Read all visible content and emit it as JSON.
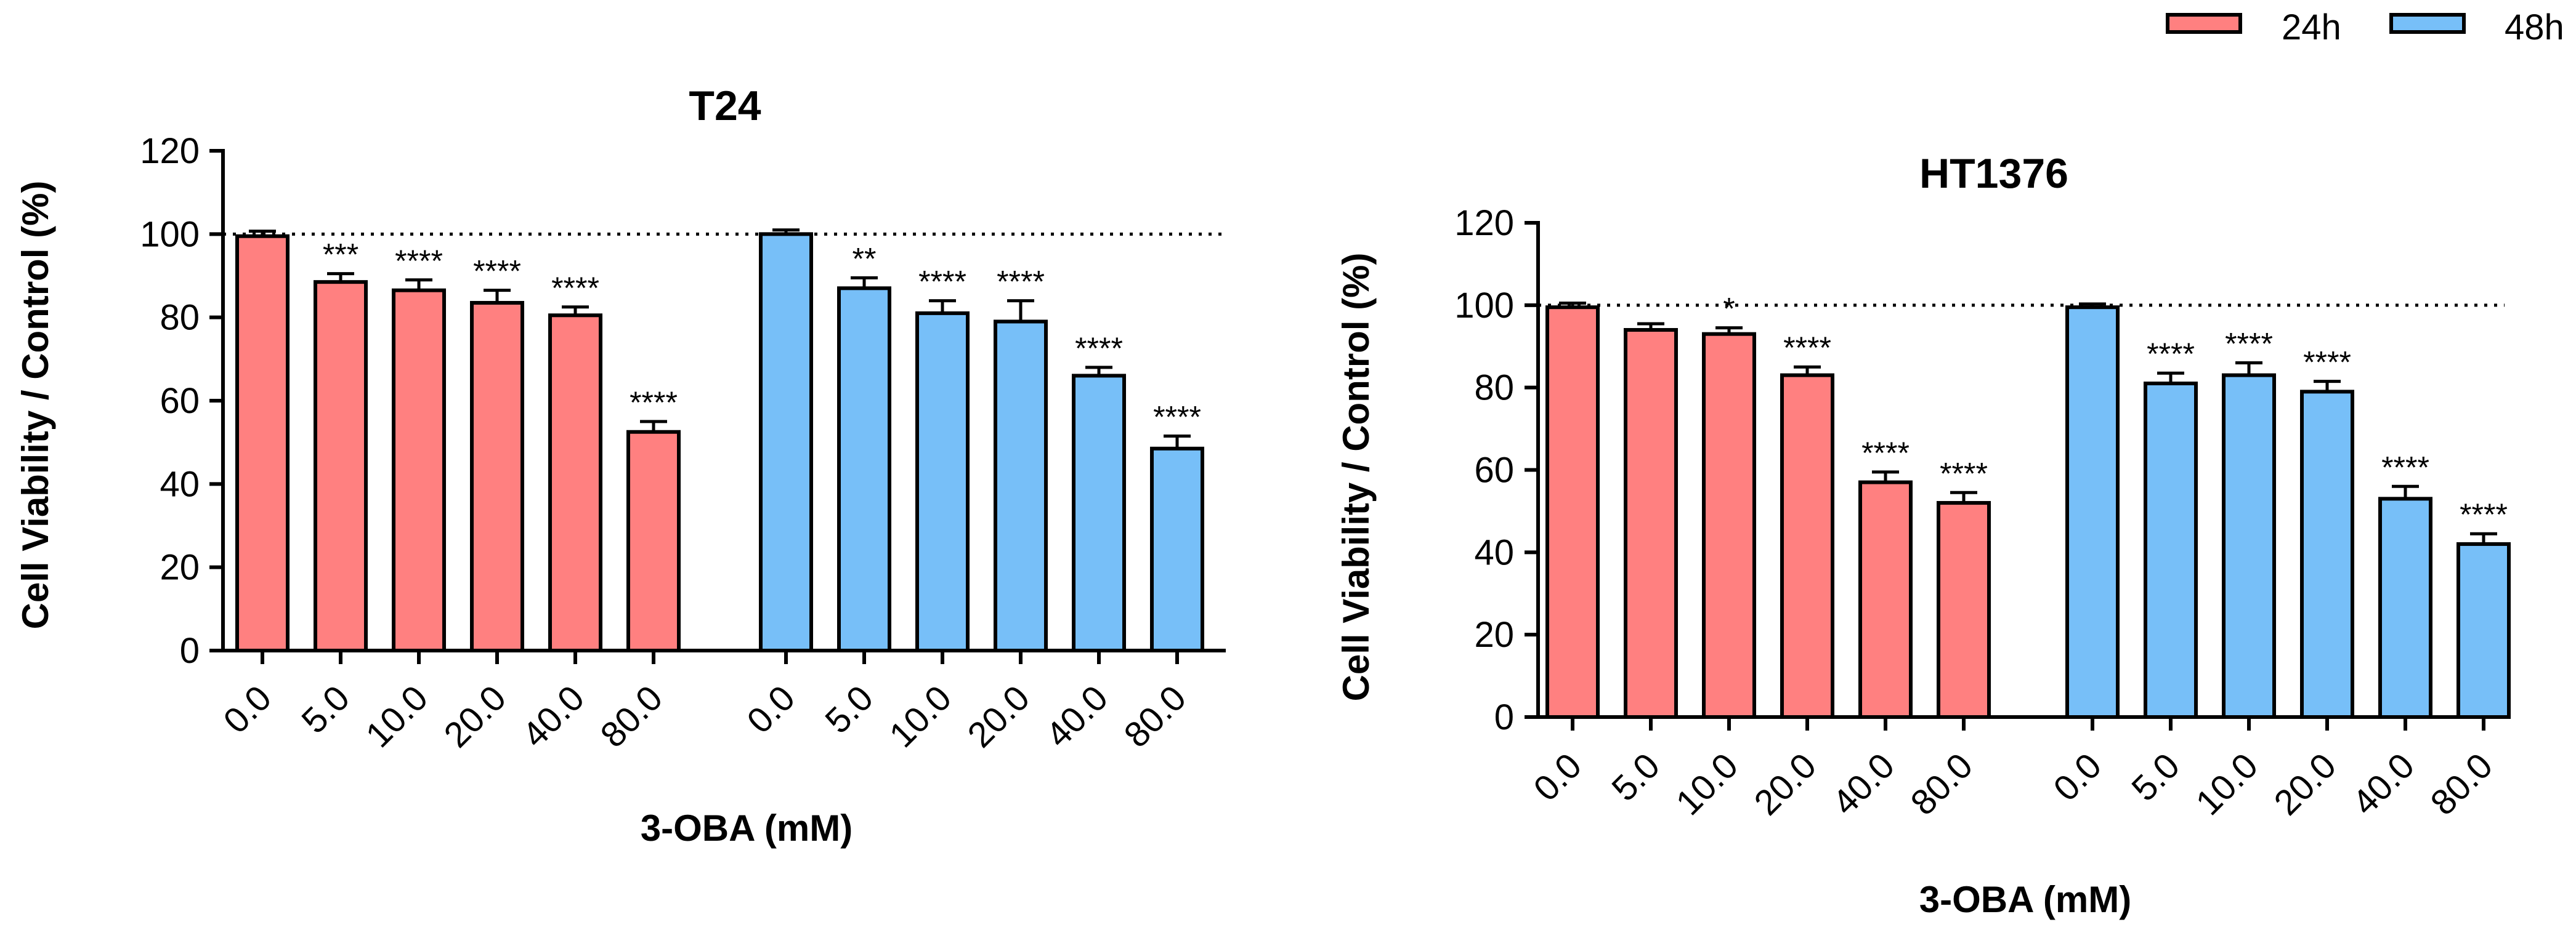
{
  "legend": {
    "entries": [
      {
        "label": "24h",
        "color": "#ff8080"
      },
      {
        "label": "48h",
        "color": "#77bff8"
      }
    ]
  },
  "chart_data": [
    {
      "type": "bar",
      "title": "T24",
      "xlabel": "3-OBA (mM)",
      "ylabel": "Cell Viability / Control (%)",
      "ylim": [
        0,
        120
      ],
      "yticks": [
        "0",
        "20",
        "40",
        "60",
        "80",
        "100",
        "120"
      ],
      "reference_line": 100,
      "series": [
        {
          "name": "24h",
          "color": "#ff8080",
          "categories": [
            "0.0",
            "5.0",
            "10.0",
            "20.0",
            "40.0",
            "80.0"
          ],
          "values": [
            99.5,
            88.5,
            86.5,
            83.5,
            80.5,
            52.5
          ],
          "errors": [
            1.2,
            2,
            2.5,
            3,
            2,
            2.5
          ],
          "significance": [
            "",
            "***",
            "****",
            "****",
            "****",
            "****"
          ]
        },
        {
          "name": "48h",
          "color": "#77bff8",
          "categories": [
            "0.0",
            "5.0",
            "10.0",
            "20.0",
            "40.0",
            "80.0"
          ],
          "values": [
            100,
            87,
            81,
            79,
            66,
            48.5
          ],
          "errors": [
            1,
            2.5,
            3,
            5,
            2,
            3
          ],
          "significance": [
            "",
            "**",
            "****",
            "****",
            "****",
            "****"
          ]
        }
      ]
    },
    {
      "type": "bar",
      "title": "HT1376",
      "xlabel": "3-OBA (mM)",
      "ylabel": "Cell Viability / Control (%)",
      "ylim": [
        0,
        120
      ],
      "yticks": [
        "0",
        "20",
        "40",
        "60",
        "80",
        "100",
        "120"
      ],
      "reference_line": 100,
      "series": [
        {
          "name": "24h",
          "color": "#ff8080",
          "categories": [
            "0.0",
            "5.0",
            "10.0",
            "20.0",
            "40.0",
            "80.0"
          ],
          "values": [
            99.5,
            94,
            93,
            83,
            57,
            52
          ],
          "errors": [
            1,
            1.5,
            1.5,
            2,
            2.5,
            2.5
          ],
          "significance": [
            "",
            "",
            "*",
            "****",
            "****",
            "****"
          ]
        },
        {
          "name": "48h",
          "color": "#77bff8",
          "categories": [
            "0.0",
            "5.0",
            "10.0",
            "20.0",
            "40.0",
            "80.0"
          ],
          "values": [
            99.5,
            81,
            83,
            79,
            53,
            42
          ],
          "errors": [
            0.8,
            2.5,
            3,
            2.5,
            3,
            2.5
          ],
          "significance": [
            "",
            "****",
            "****",
            "****",
            "****",
            "****"
          ]
        }
      ]
    }
  ]
}
